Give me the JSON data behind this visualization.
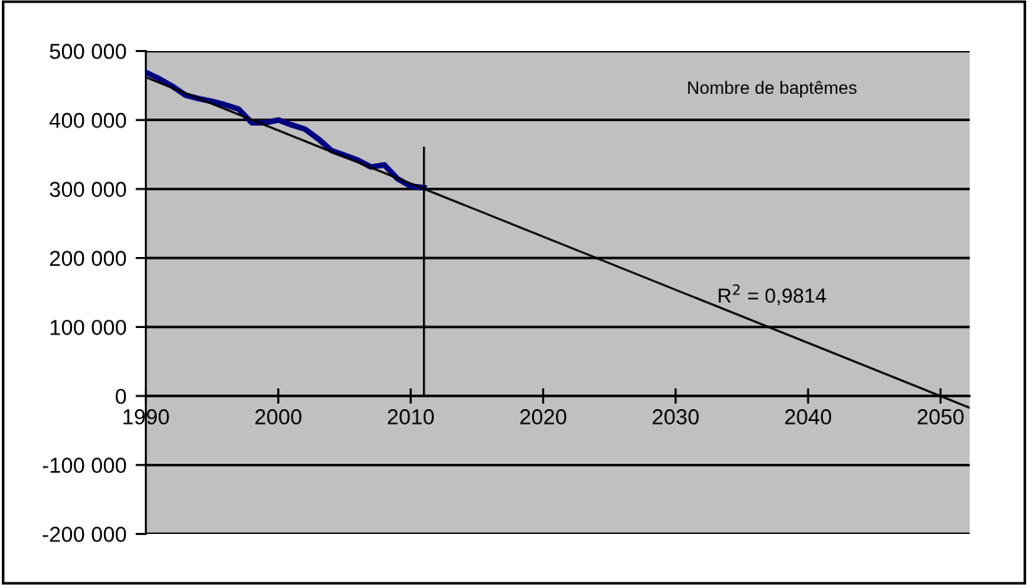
{
  "chart_data": {
    "type": "line",
    "title": "Nombre de baptêmes",
    "x": [
      1990,
      1991,
      1992,
      1993,
      1994,
      1995,
      1996,
      1997,
      1998,
      1999,
      2000,
      2001,
      2002,
      2003,
      2004,
      2005,
      2006,
      2007,
      2008,
      2009,
      2010,
      2011
    ],
    "series": [
      {
        "color": "#000080",
        "values": [
          469000,
          460000,
          449000,
          436000,
          431000,
          427000,
          422000,
          416000,
          396000,
          396000,
          400000,
          393000,
          387000,
          373000,
          356000,
          349000,
          342000,
          332000,
          335000,
          315000,
          304000,
          302000
        ]
      },
      {
        "color": "#000000",
        "x": [
          1990,
          2052.2
        ],
        "values": [
          462000,
          -17000
        ]
      },
      {
        "color": "#000000",
        "x": [
          2011,
          2011
        ],
        "values": [
          360000,
          0
        ]
      }
    ],
    "annotations": [
      "R$^{2}$ = 0,9814"
    ],
    "xlim": [
      1990,
      2052.2
    ],
    "ylim": [
      -200000,
      500000
    ],
    "xticks": [
      1990,
      2000,
      2010,
      2020,
      2030,
      2040,
      2050
    ],
    "yticks": [
      {
        "value": -200000,
        "label": "-200 000"
      },
      {
        "value": -100000,
        "label": "-100 000"
      },
      {
        "value": 0,
        "label": "0"
      },
      {
        "value": 100000,
        "label": "100 000"
      },
      {
        "value": 200000,
        "label": "200 000"
      },
      {
        "value": 300000,
        "label": "300 000"
      },
      {
        "value": 400000,
        "label": "400 000"
      },
      {
        "value": 500000,
        "label": "500 000"
      }
    ],
    "grid": "y",
    "legend": false,
    "marker": "none",
    "line_style": "solid"
  }
}
